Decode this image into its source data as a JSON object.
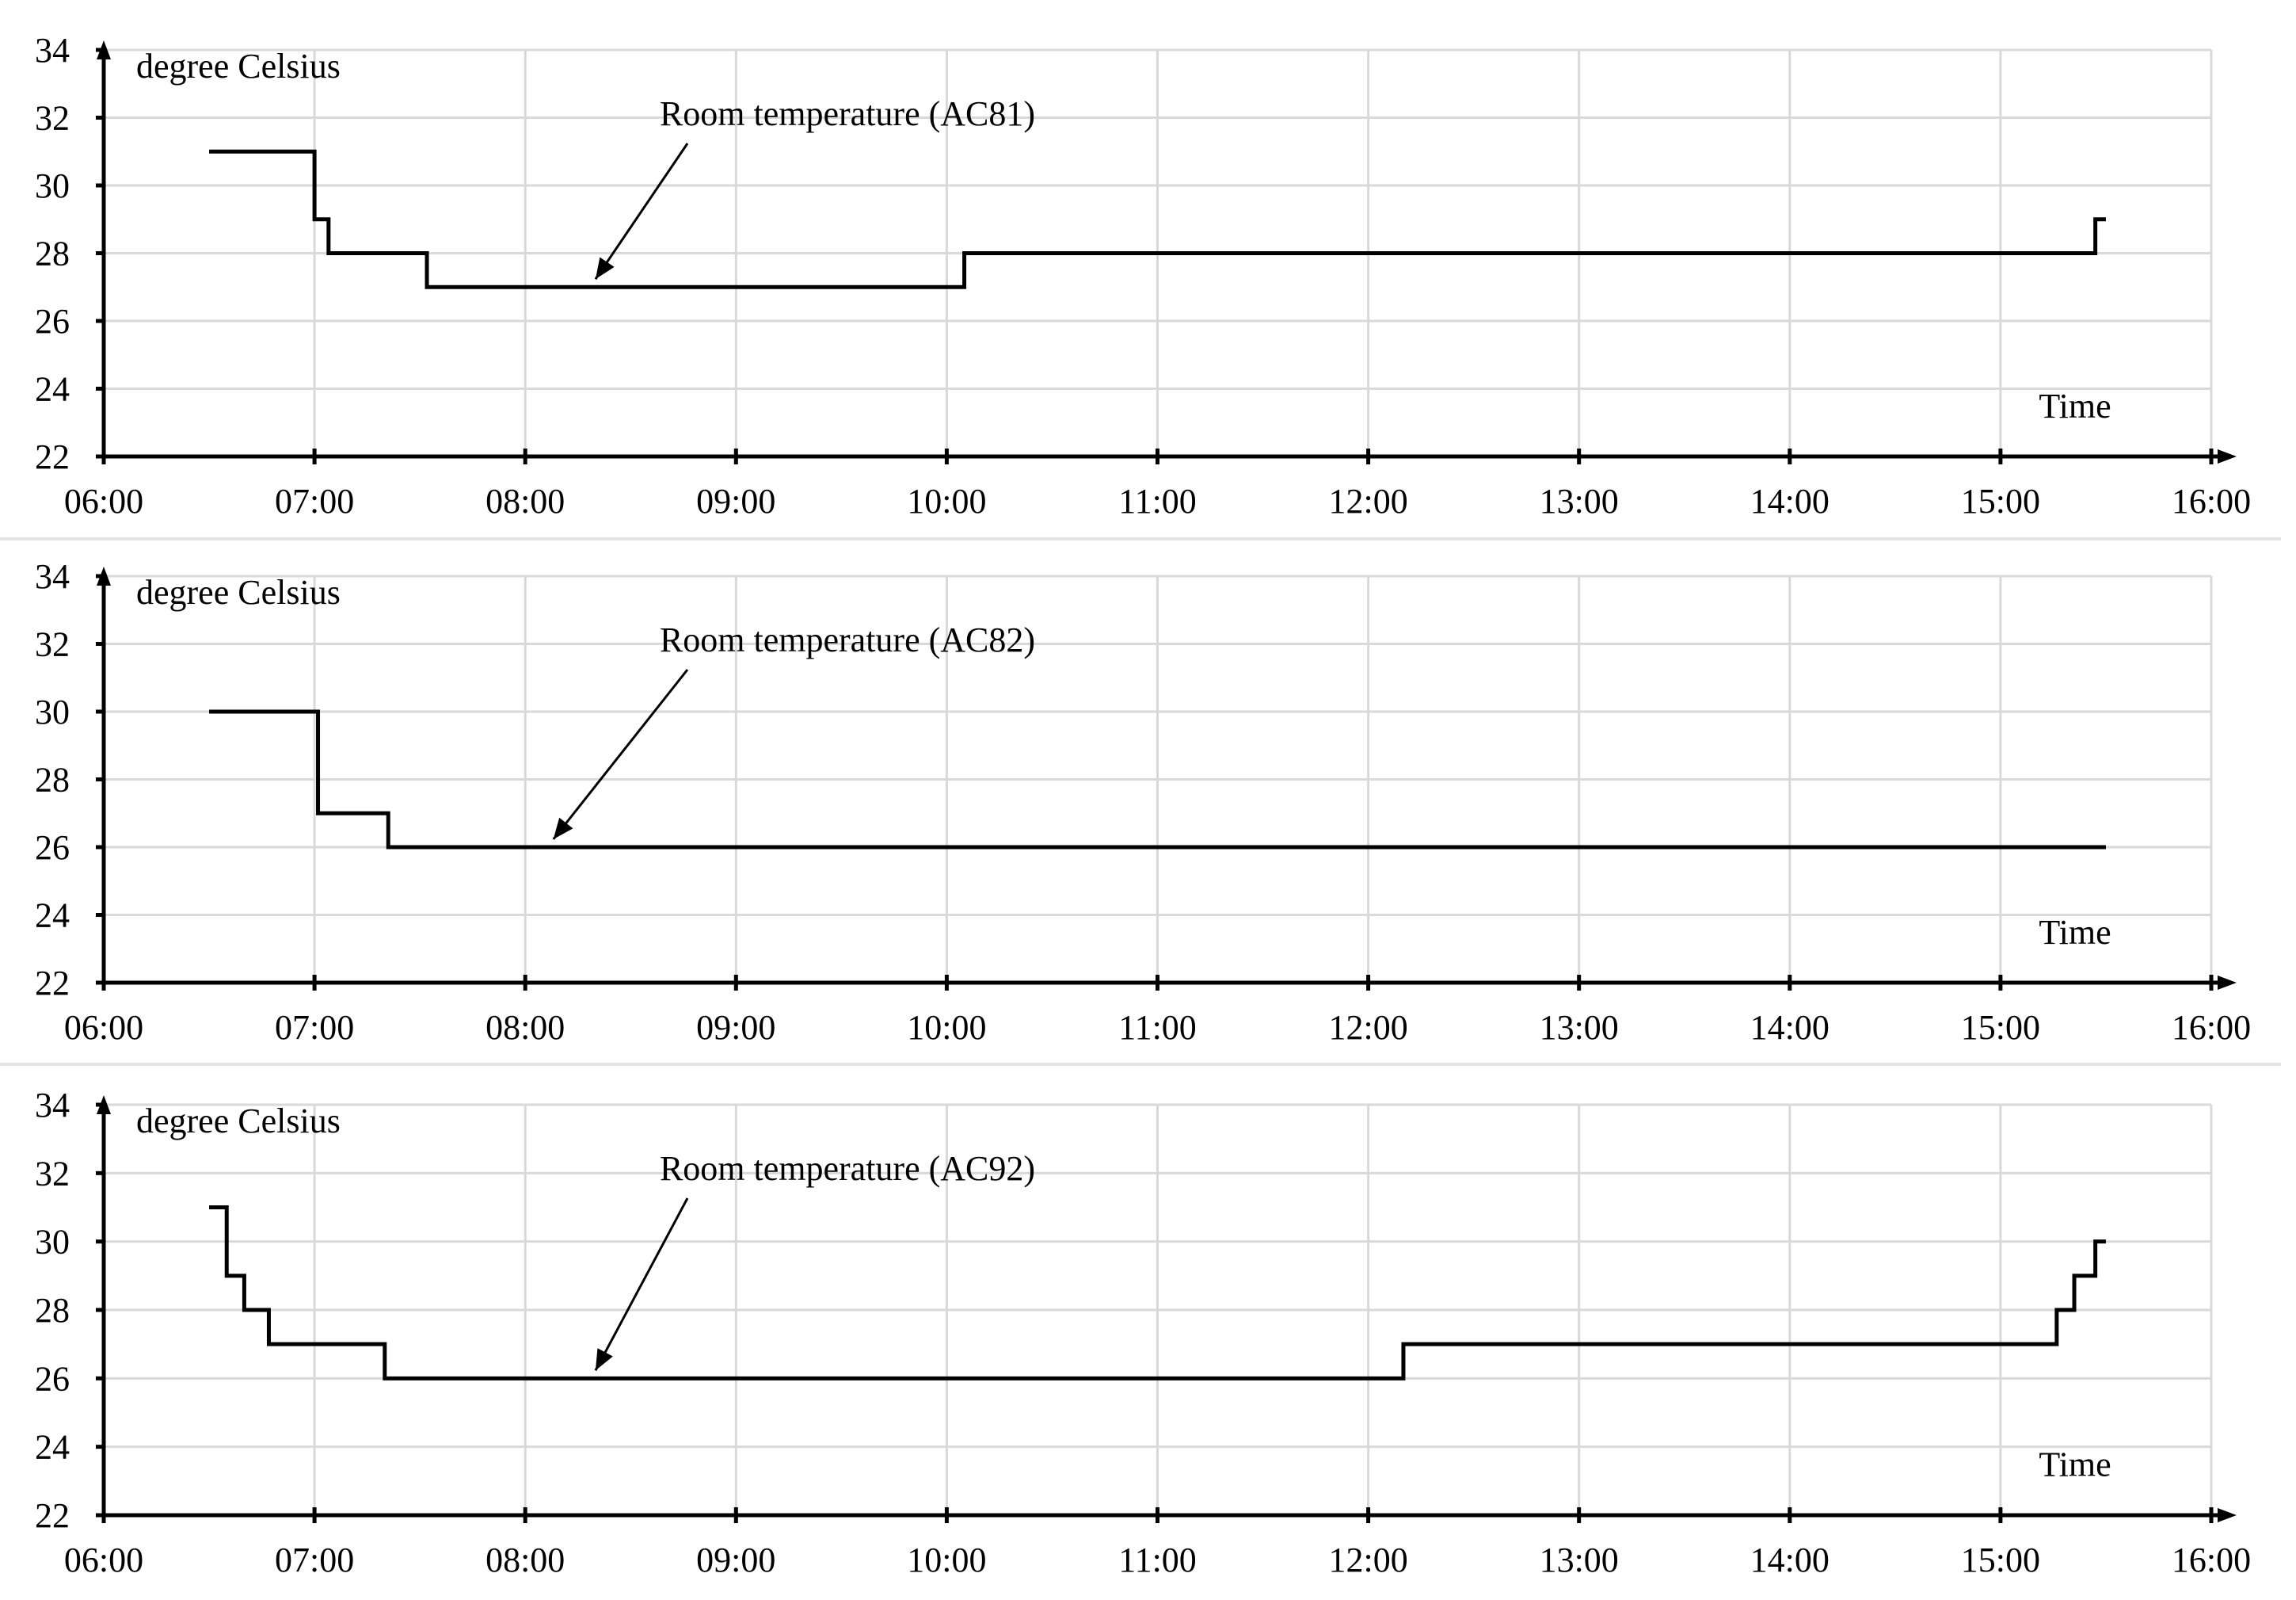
{
  "chart_data": [
    {
      "type": "line",
      "ylabel": "degree Celsius",
      "xlabel": "Time",
      "annotation": "Room temperature (AC81)",
      "annotation_target": {
        "x": "08:20",
        "y": 27
      },
      "ylim": [
        22,
        34
      ],
      "yticks": [
        "22",
        "24",
        "26",
        "28",
        "30",
        "32",
        "34"
      ],
      "xlim": [
        "06:00",
        "16:00"
      ],
      "xticks": [
        "06:00",
        "07:00",
        "08:00",
        "09:00",
        "10:00",
        "11:00",
        "12:00",
        "13:00",
        "14:00",
        "15:00",
        "16:00"
      ],
      "grid": true,
      "step": true,
      "series": [
        {
          "points": [
            [
              "06:30",
              31
            ],
            [
              "07:00",
              29
            ],
            [
              "07:04",
              28
            ],
            [
              "07:32",
              27
            ],
            [
              "10:05",
              28
            ],
            [
              "15:27",
              29
            ],
            [
              "15:30",
              29
            ]
          ]
        }
      ]
    },
    {
      "type": "line",
      "ylabel": "degree Celsius",
      "xlabel": "Time",
      "annotation": "Room temperature (AC82)",
      "annotation_target": {
        "x": "08:08",
        "y": 26
      },
      "ylim": [
        22,
        34
      ],
      "yticks": [
        "22",
        "24",
        "26",
        "28",
        "30",
        "32",
        "34"
      ],
      "xlim": [
        "06:00",
        "16:00"
      ],
      "xticks": [
        "06:00",
        "07:00",
        "08:00",
        "09:00",
        "10:00",
        "11:00",
        "12:00",
        "13:00",
        "14:00",
        "15:00",
        "16:00"
      ],
      "grid": true,
      "step": true,
      "series": [
        {
          "points": [
            [
              "06:30",
              30
            ],
            [
              "07:01",
              27
            ],
            [
              "07:21",
              26
            ],
            [
              "15:30",
              26
            ]
          ]
        }
      ]
    },
    {
      "type": "line",
      "ylabel": "degree Celsius",
      "xlabel": "Time",
      "annotation": "Room temperature (AC92)",
      "annotation_target": {
        "x": "08:20",
        "y": 26
      },
      "ylim": [
        22,
        34
      ],
      "yticks": [
        "22",
        "24",
        "26",
        "28",
        "30",
        "32",
        "34"
      ],
      "xlim": [
        "06:00",
        "16:00"
      ],
      "xticks": [
        "06:00",
        "07:00",
        "08:00",
        "09:00",
        "10:00",
        "11:00",
        "12:00",
        "13:00",
        "14:00",
        "15:00",
        "16:00"
      ],
      "grid": true,
      "step": true,
      "series": [
        {
          "points": [
            [
              "06:30",
              31
            ],
            [
              "06:35",
              29
            ],
            [
              "06:40",
              28
            ],
            [
              "06:47",
              27
            ],
            [
              "07:20",
              26
            ],
            [
              "12:10",
              27
            ],
            [
              "15:16",
              28
            ],
            [
              "15:21",
              29
            ],
            [
              "15:27",
              30
            ],
            [
              "15:30",
              30
            ]
          ]
        }
      ]
    }
  ]
}
